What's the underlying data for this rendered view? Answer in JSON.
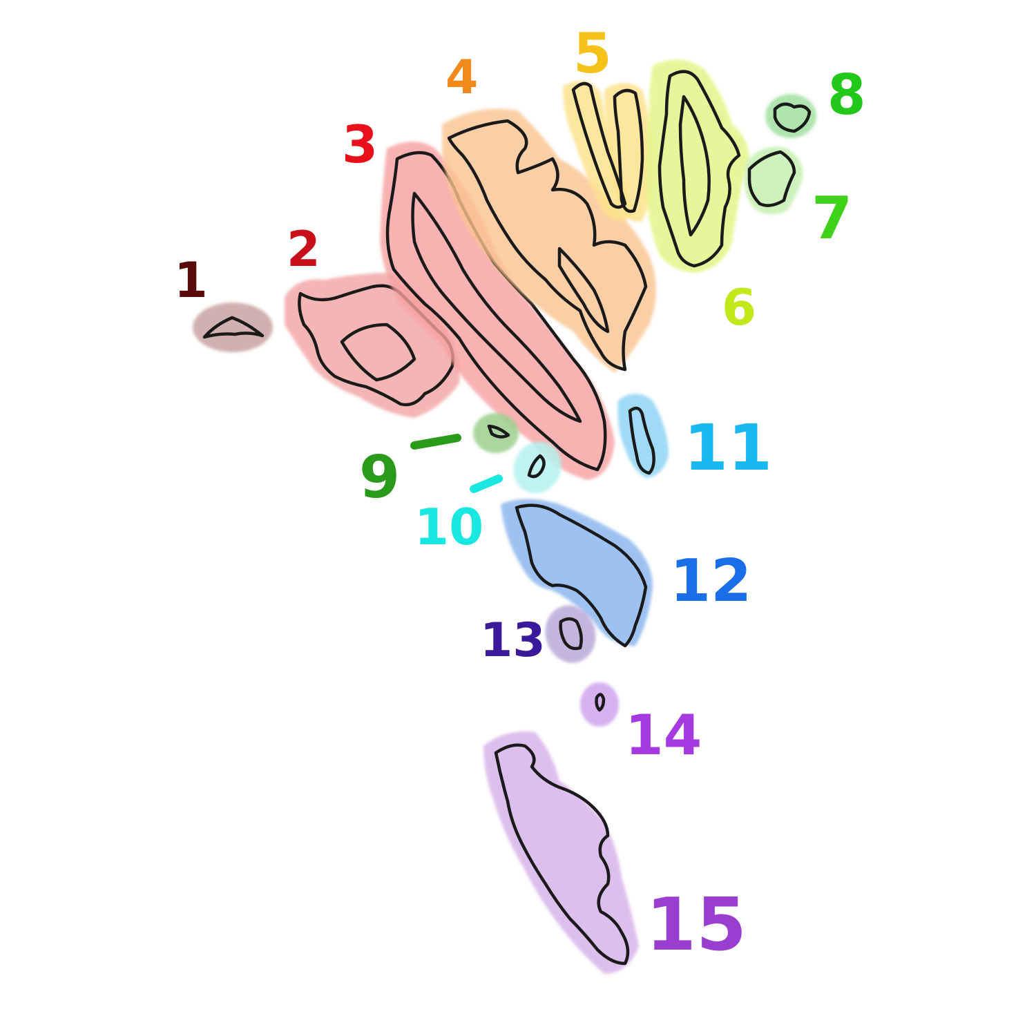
{
  "title": "",
  "islands": [
    {
      "id": 1,
      "label": "1",
      "color": "#5a0a0a",
      "fill": "#c9a3a3"
    },
    {
      "id": 2,
      "label": "2",
      "color": "#c8101a",
      "fill": "#f2a3a3"
    },
    {
      "id": 3,
      "label": "3",
      "color": "#e8101a",
      "fill": "#f7a0a0"
    },
    {
      "id": 4,
      "label": "4",
      "color": "#f08a1a",
      "fill": "#fbc490"
    },
    {
      "id": 5,
      "label": "5",
      "color": "#f6c21a",
      "fill": "#fde28c"
    },
    {
      "id": 6,
      "label": "6",
      "color": "#c2e81a",
      "fill": "#e6f48a"
    },
    {
      "id": 7,
      "label": "7",
      "color": "#3fd21a",
      "fill": "#c5f0b0"
    },
    {
      "id": 8,
      "label": "8",
      "color": "#22c81a",
      "fill": "#a3e0a0"
    },
    {
      "id": 9,
      "label": "9",
      "color": "#2a9a1a",
      "fill": "#9ccf8e"
    },
    {
      "id": 10,
      "label": "10",
      "color": "#1ae8e0",
      "fill": "#b5f2ef"
    },
    {
      "id": 11,
      "label": "11",
      "color": "#1ab8f0",
      "fill": "#8fd4f5"
    },
    {
      "id": 12,
      "label": "12",
      "color": "#1a6ee8",
      "fill": "#8db7ef"
    },
    {
      "id": 13,
      "label": "13",
      "color": "#3a1a9a",
      "fill": "#b9a9d8"
    },
    {
      "id": 14,
      "label": "14",
      "color": "#a53ae0",
      "fill": "#d2a9ef"
    },
    {
      "id": 15,
      "label": "15",
      "color": "#9a3ed0",
      "fill": "#d8b4ea"
    }
  ]
}
